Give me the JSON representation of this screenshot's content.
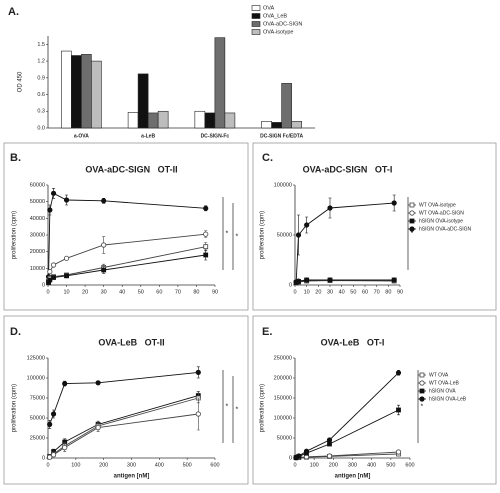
{
  "chart_data": [
    {
      "type": "bar",
      "panel_label": "A.",
      "y_label": "OD 450",
      "categories": [
        "a-OVA",
        "a-LeB",
        "DC-SIGN-Fc",
        "DC-SIGN Fc/EDTA"
      ],
      "series": [
        {
          "name": "OVA",
          "color": "#ffffff",
          "values": [
            1.38,
            0.28,
            0.3,
            0.12
          ]
        },
        {
          "name": "OVA_LeB",
          "color": "#111111",
          "values": [
            1.3,
            0.97,
            0.27,
            0.1
          ]
        },
        {
          "name": "OVA-aDC-SIGN",
          "color": "#6e6e6e",
          "values": [
            1.32,
            0.27,
            1.62,
            0.8
          ]
        },
        {
          "name": "OVA-isotype",
          "color": "#bdbdbd",
          "values": [
            1.2,
            0.3,
            0.27,
            0.12
          ]
        }
      ],
      "ylim": [
        0,
        1.65
      ],
      "yticks": [
        {
          "value": 0,
          "label": "0.0"
        },
        0.3,
        0.6,
        0.9,
        1.2,
        1.5
      ],
      "legend": "upper right"
    },
    {
      "type": "line",
      "panel_label": "B.",
      "title": "OVA-aDC-SIGN   OT-II",
      "y_label": "proliferation (cpm)",
      "x": [
        0.3,
        1,
        3,
        10,
        30,
        85
      ],
      "xlim": [
        0,
        90
      ],
      "xticks": [
        0,
        10,
        20,
        30,
        40,
        50,
        60,
        70,
        80,
        90
      ],
      "ylim": [
        0,
        60000
      ],
      "yticks": [
        0,
        10000,
        20000,
        30000,
        40000,
        50000,
        60000
      ],
      "annotations": [
        "*",
        "*"
      ],
      "series": [
        {
          "color": "#111111",
          "marker": "circle",
          "filled": true,
          "values": [
            5000,
            45000,
            55000,
            51000,
            50500,
            46000
          ],
          "errors": [
            500,
            3000,
            3000,
            3000,
            1500,
            1500
          ]
        },
        {
          "color": "#444444",
          "marker": "circle",
          "filled": false,
          "values": [
            3000,
            8000,
            12000,
            16000,
            24000,
            30500
          ],
          "errors": [
            500,
            1000,
            1000,
            1000,
            5000,
            2000
          ]
        },
        {
          "color": "#444444",
          "marker": "square",
          "filled": false,
          "values": [
            2000,
            4000,
            5000,
            6000,
            10500,
            23000
          ],
          "errors": [
            500,
            500,
            1000,
            1000,
            2000,
            2500
          ]
        },
        {
          "color": "#111111",
          "marker": "square",
          "filled": true,
          "values": [
            1500,
            3000,
            4500,
            5500,
            9000,
            18000
          ],
          "errors": [
            500,
            500,
            500,
            1000,
            2000,
            3000
          ]
        }
      ]
    },
    {
      "type": "line",
      "panel_label": "C.",
      "title": "OVA-aDC-SIGN   OT-I",
      "y_label": "proliferation (cpm)",
      "x": [
        1,
        3,
        10,
        30,
        85
      ],
      "xlim": [
        0,
        90
      ],
      "xticks": [
        0,
        10,
        20,
        30,
        40,
        50,
        60,
        70,
        80,
        90
      ],
      "ylim": [
        0,
        100000
      ],
      "yticks": [
        0,
        50000,
        100000
      ],
      "annotations": [
        "*"
      ],
      "legend": "right",
      "series": [
        {
          "name": "WT OVA-isotype",
          "color": "#444444",
          "marker": "square",
          "filled": false,
          "values": [
            2000,
            3000,
            4000,
            4500,
            4000
          ],
          "errors": [
            500,
            500,
            500,
            500,
            500
          ]
        },
        {
          "name": "WT OVA-aDC-SIGN",
          "color": "#444444",
          "marker": "circle",
          "filled": false,
          "values": [
            3000,
            4000,
            5000,
            5000,
            5000
          ],
          "errors": [
            500,
            500,
            500,
            500,
            500
          ]
        },
        {
          "name": "hSIGN OVA-isotype",
          "color": "#111111",
          "marker": "square",
          "filled": true,
          "values": [
            2500,
            3500,
            5000,
            5000,
            5000
          ],
          "errors": [
            500,
            500,
            500,
            500,
            500
          ]
        },
        {
          "name": "hSIGN OVA-aDC-SIGN",
          "color": "#111111",
          "marker": "circle",
          "filled": true,
          "values": [
            3000,
            50000,
            60000,
            77000,
            82000
          ],
          "errors": [
            1000,
            20000,
            8000,
            10000,
            8000
          ]
        }
      ]
    },
    {
      "type": "line",
      "panel_label": "D.",
      "title": "OVA-LeB   OT-II",
      "y_label": "proliferation (cpm)",
      "x_label": "antigen [nM]",
      "x": [
        6,
        20,
        60,
        180,
        540
      ],
      "xlim": [
        0,
        600
      ],
      "xticks": [
        0,
        100,
        200,
        300,
        400,
        500,
        600
      ],
      "ylim": [
        0,
        125000
      ],
      "yticks": [
        0,
        25000,
        50000,
        75000,
        100000,
        125000
      ],
      "annotations": [
        "*",
        "*"
      ],
      "series": [
        {
          "color": "#111111",
          "marker": "circle",
          "filled": true,
          "values": [
            42000,
            55000,
            93000,
            94000,
            107000
          ],
          "errors": [
            5000,
            5000,
            3000,
            2000,
            7000
          ]
        },
        {
          "color": "#111111",
          "marker": "square",
          "filled": true,
          "values": [
            2000,
            8000,
            20000,
            42000,
            78000
          ],
          "errors": [
            1000,
            3000,
            4000,
            4000,
            5000
          ]
        },
        {
          "color": "#444444",
          "marker": "square",
          "filled": false,
          "values": [
            1500,
            5000,
            15000,
            40000,
            75000
          ],
          "errors": [
            1000,
            2000,
            4000,
            4000,
            6000
          ]
        },
        {
          "color": "#444444",
          "marker": "circle",
          "filled": false,
          "values": [
            1000,
            4000,
            13000,
            38000,
            55000
          ],
          "errors": [
            1000,
            2000,
            5000,
            5000,
            20000
          ]
        }
      ]
    },
    {
      "type": "line",
      "panel_label": "E.",
      "title": "OVA-LeB   OT-I",
      "y_label": "proliferation (cpm)",
      "x_label": "antigen [nM]",
      "x": [
        6,
        20,
        60,
        180,
        540
      ],
      "xlim": [
        0,
        600
      ],
      "xticks": [
        0,
        100,
        200,
        300,
        400,
        500,
        600
      ],
      "ylim": [
        0,
        250000
      ],
      "yticks": [
        0,
        50000,
        100000,
        150000,
        200000,
        250000
      ],
      "annotations": [
        "*"
      ],
      "legend": "right",
      "series": [
        {
          "name": "WT OVA",
          "color": "#444444",
          "marker": "square",
          "filled": false,
          "values": [
            500,
            1000,
            2000,
            4000,
            10000
          ],
          "errors": [
            200,
            300,
            500,
            800,
            2000
          ]
        },
        {
          "name": "WT OVA-LeB",
          "color": "#444444",
          "marker": "circle",
          "filled": false,
          "values": [
            500,
            1500,
            3000,
            5000,
            15000
          ],
          "errors": [
            200,
            300,
            500,
            800,
            2000
          ]
        },
        {
          "name": "hSIGN OVA",
          "color": "#111111",
          "marker": "square",
          "filled": true,
          "values": [
            1000,
            4000,
            12000,
            35000,
            120000
          ],
          "errors": [
            500,
            1000,
            2000,
            3000,
            12000
          ]
        },
        {
          "name": "hSIGN OVA-LeB",
          "color": "#111111",
          "marker": "circle",
          "filled": true,
          "values": [
            2000,
            5000,
            17000,
            45000,
            213000
          ],
          "errors": [
            500,
            1000,
            2000,
            3000,
            6000
          ]
        }
      ]
    }
  ]
}
